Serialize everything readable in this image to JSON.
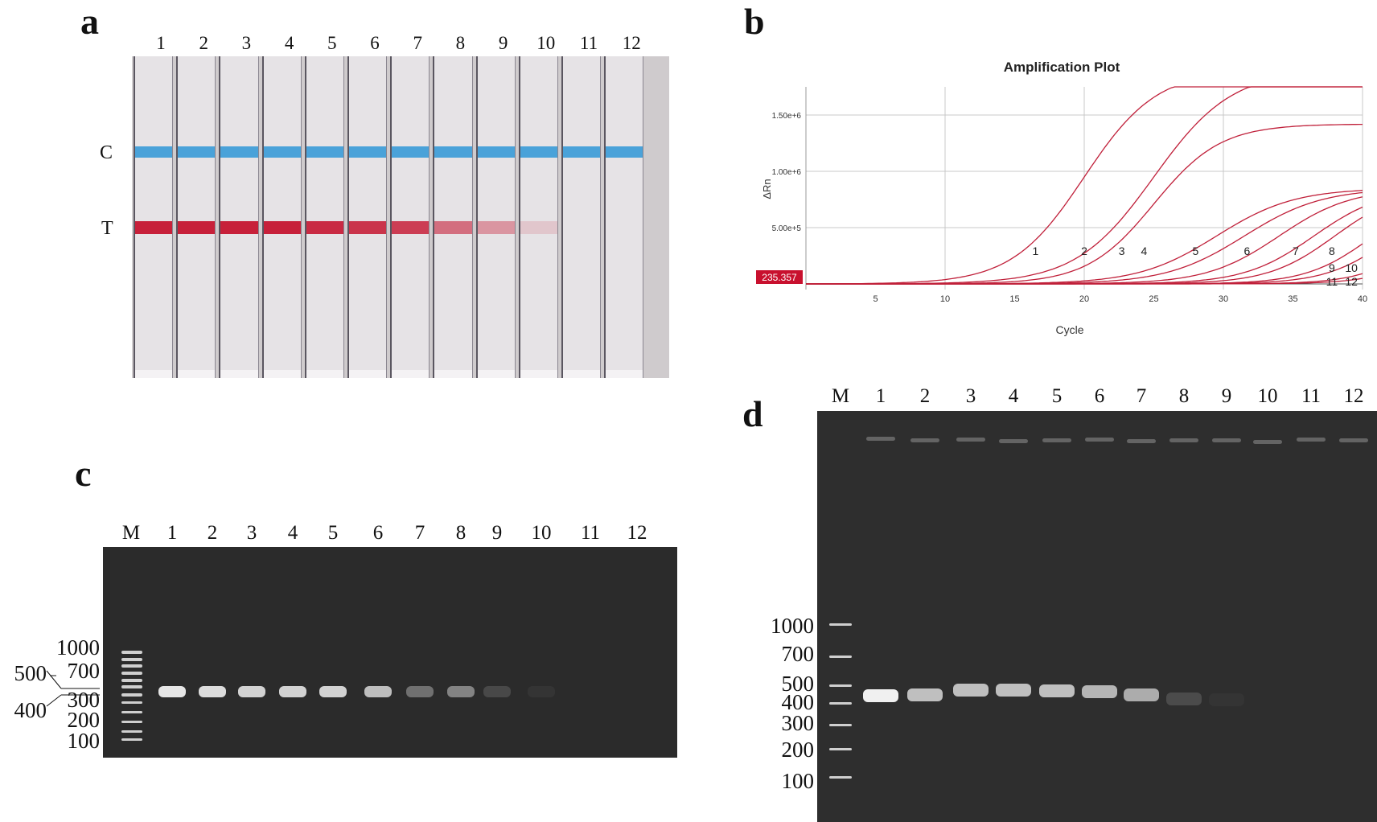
{
  "panels": {
    "a": {
      "letter": "a",
      "lanes": [
        "1",
        "2",
        "3",
        "4",
        "5",
        "6",
        "7",
        "8",
        "9",
        "10",
        "11",
        "12"
      ],
      "control_label": "C",
      "test_label": "T",
      "test_line_intensity": [
        1.0,
        1.0,
        1.0,
        1.0,
        0.95,
        0.9,
        0.85,
        0.6,
        0.4,
        0.15,
        0,
        0
      ],
      "colors": {
        "control_line": "#4aa2d9",
        "test_line": "#c7203a"
      }
    },
    "b": {
      "letter": "b",
      "chart_data": {
        "type": "line",
        "title": "Amplification Plot",
        "xlabel": "Cycle",
        "ylabel": "ΔRn",
        "xlim": [
          0,
          40
        ],
        "ylim": [
          -50000,
          1750000
        ],
        "x_ticks": [
          "5",
          "10",
          "15",
          "20",
          "25",
          "30",
          "35",
          "40"
        ],
        "y_ticks": [
          "5.00e+5",
          "1.00e+6",
          "1.50e+6"
        ],
        "y_tick_values": [
          500000,
          1000000,
          1500000
        ],
        "threshold_label": "235.357",
        "grid": true,
        "series": [
          {
            "name": "1",
            "ct_label_x": 16.5,
            "midpoint": 20.0,
            "plateau": 1900000,
            "slope": 2.6
          },
          {
            "name": "2",
            "ct_label_x": 20.0,
            "midpoint": 25.0,
            "plateau": 1900000,
            "slope": 2.8
          },
          {
            "name": "3",
            "ct_label_x": 22.7,
            "midpoint": 25.0,
            "plateau": 1420000,
            "slope": 2.4
          },
          {
            "name": "4",
            "ct_label_x": 24.3,
            "midpoint": 29.5,
            "plateau": 850000,
            "slope": 2.8
          },
          {
            "name": "5",
            "ct_label_x": 28.0,
            "midpoint": 31.5,
            "plateau": 850000,
            "slope": 2.8
          },
          {
            "name": "6",
            "ct_label_x": 31.7,
            "midpoint": 34.0,
            "plateau": 850000,
            "slope": 2.6
          },
          {
            "name": "7",
            "ct_label_x": 35.2,
            "midpoint": 36.5,
            "plateau": 850000,
            "slope": 2.5
          },
          {
            "name": "8",
            "ct_label_x": 37.8,
            "midpoint": 38.0,
            "plateau": 850000,
            "slope": 2.4
          },
          {
            "name": "9",
            "ct_label_x": 37.8,
            "midpoint": 40.5,
            "plateau": 800000,
            "slope": 2.3
          },
          {
            "name": "10",
            "ct_label_x": 39.2,
            "midpoint": 42.0,
            "plateau": 800000,
            "slope": 2.3
          },
          {
            "name": "11",
            "ct_label_x": 37.8,
            "midpoint": 44.5,
            "plateau": 800000,
            "slope": 2.2
          },
          {
            "name": "12",
            "ct_label_x": 39.2,
            "midpoint": 46.0,
            "plateau": 800000,
            "slope": 2.2
          }
        ],
        "colors": {
          "line": "#c0203a",
          "threshold_box": "#c8102e",
          "grid": "#c8c8c8"
        }
      }
    },
    "c": {
      "letter": "c",
      "lanes": [
        "M",
        "1",
        "2",
        "3",
        "4",
        "5",
        "6",
        "7",
        "8",
        "9",
        "10",
        "11",
        "12"
      ],
      "marker_labels_right": [
        "1000",
        "700",
        "300",
        "200",
        "100"
      ],
      "marker_labels_left": [
        "500",
        "400"
      ],
      "band_intensity": [
        0.95,
        0.9,
        0.85,
        0.85,
        0.85,
        0.75,
        0.35,
        0.45,
        0.15,
        0.05,
        0,
        0
      ]
    },
    "d": {
      "letter": "d",
      "lanes": [
        "M",
        "1",
        "2",
        "3",
        "4",
        "5",
        "6",
        "7",
        "8",
        "9",
        "10",
        "11",
        "12"
      ],
      "marker_labels": [
        "1000",
        "700",
        "500",
        "400",
        "300",
        "200",
        "100"
      ],
      "band_intensity": [
        1.0,
        0.75,
        0.75,
        0.75,
        0.75,
        0.7,
        0.65,
        0.15,
        0.03,
        0,
        0,
        0
      ]
    }
  }
}
